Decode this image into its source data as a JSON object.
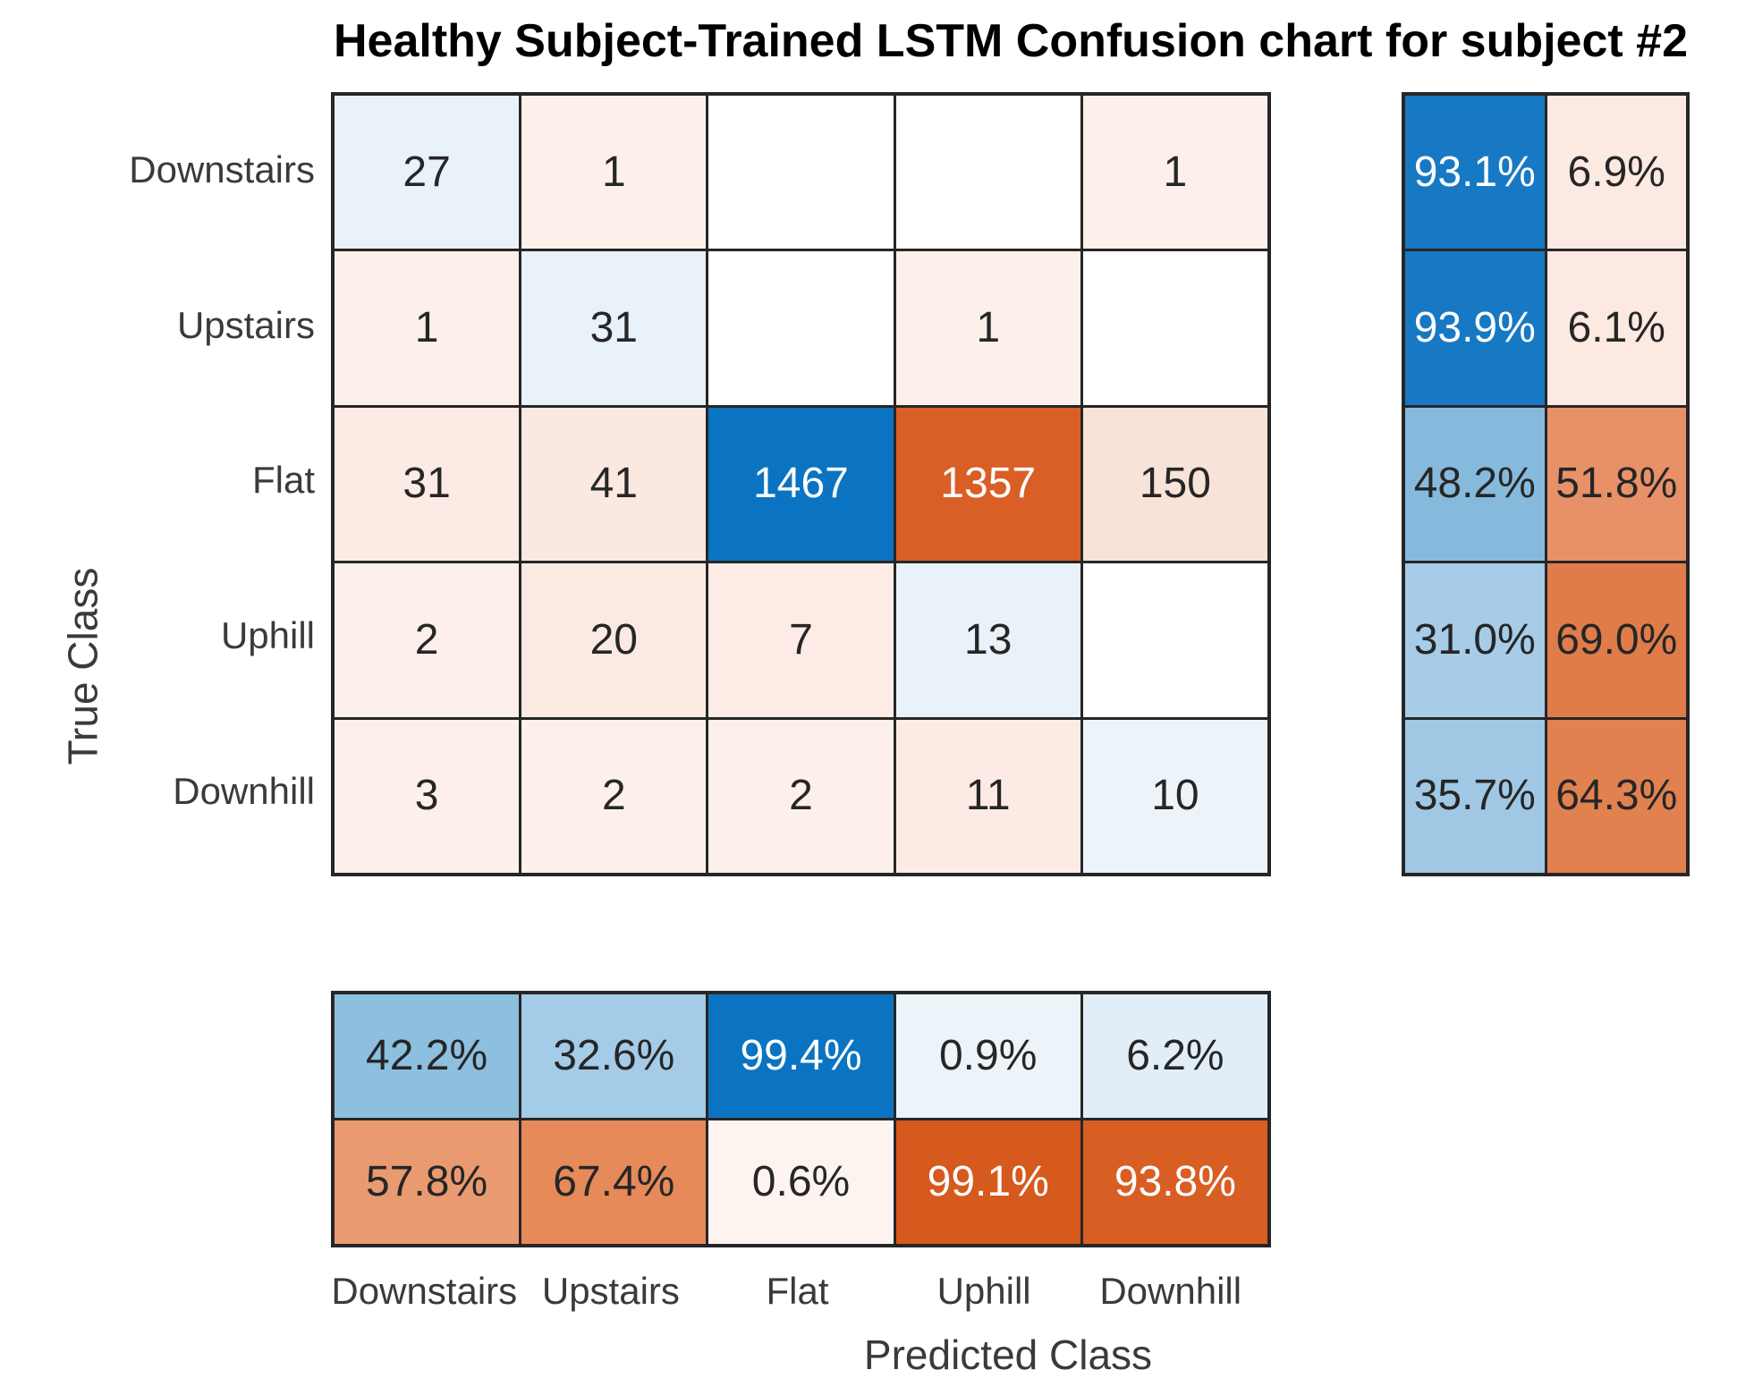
{
  "title": "Healthy Subject-Trained LSTM Confusion chart for subject #2",
  "x_axis": {
    "label": "Predicted Class",
    "ticks": [
      "Downstairs",
      "Upstairs",
      "Flat",
      "Uphill",
      "Downhill"
    ]
  },
  "y_axis": {
    "label": "True Class",
    "ticks": [
      "Downstairs",
      "Upstairs",
      "Flat",
      "Uphill",
      "Downhill"
    ]
  },
  "colors": {
    "diagonal_blue": "#0b74c2",
    "off_diagonal_orange": "#d95f26",
    "grid_line": "#262626",
    "text_dark": "#262626",
    "text_light": "#ffffff",
    "background": "#ffffff"
  },
  "chart_data": {
    "type": "heatmap",
    "title": "Healthy Subject-Trained LSTM Confusion chart for subject #2",
    "xlabel": "Predicted Class",
    "ylabel": "True Class",
    "classes": [
      "Downstairs",
      "Upstairs",
      "Flat",
      "Uphill",
      "Downhill"
    ],
    "matrix_rows_true_class": [
      "Downstairs",
      "Upstairs",
      "Flat",
      "Uphill",
      "Downhill"
    ],
    "matrix": [
      [
        27,
        1,
        0,
        0,
        1
      ],
      [
        1,
        31,
        0,
        1,
        0
      ],
      [
        31,
        41,
        1467,
        1357,
        150
      ],
      [
        2,
        20,
        7,
        13,
        0
      ],
      [
        3,
        2,
        2,
        11,
        10
      ]
    ],
    "zero_cells_shown_blank": true,
    "row_summary_true_positive_rate_pct": [
      93.1,
      93.9,
      48.2,
      31.0,
      35.7
    ],
    "row_summary_false_negative_rate_pct": [
      6.9,
      6.1,
      51.8,
      69.0,
      64.3
    ],
    "col_summary_positive_predictive_value_pct": [
      42.2,
      32.6,
      99.4,
      0.9,
      6.2
    ],
    "col_summary_false_discovery_rate_pct": [
      57.8,
      67.4,
      0.6,
      99.1,
      93.8
    ],
    "legend_position": "none",
    "grid": "dark cell borders"
  },
  "main_cells": [
    {
      "t": "27",
      "bg": "#e9f1f9",
      "fg": "#262626"
    },
    {
      "t": "1",
      "bg": "#fdf0eb",
      "fg": "#262626"
    },
    {
      "t": "",
      "bg": "#ffffff",
      "fg": "#262626"
    },
    {
      "t": "",
      "bg": "#ffffff",
      "fg": "#262626"
    },
    {
      "t": "1",
      "bg": "#fdf0eb",
      "fg": "#262626"
    },
    {
      "t": "1",
      "bg": "#fdf0eb",
      "fg": "#262626"
    },
    {
      "t": "31",
      "bg": "#e9f1f9",
      "fg": "#262626"
    },
    {
      "t": "",
      "bg": "#ffffff",
      "fg": "#262626"
    },
    {
      "t": "1",
      "bg": "#fdf0eb",
      "fg": "#262626"
    },
    {
      "t": "",
      "bg": "#ffffff",
      "fg": "#262626"
    },
    {
      "t": "31",
      "bg": "#fcebe4",
      "fg": "#262626"
    },
    {
      "t": "41",
      "bg": "#fbe9e1",
      "fg": "#262626"
    },
    {
      "t": "1467",
      "bg": "#0b74c2",
      "fg": "#ffffff"
    },
    {
      "t": "1357",
      "bg": "#d95f26",
      "fg": "#ffffff"
    },
    {
      "t": "150",
      "bg": "#f8e3d8",
      "fg": "#262626"
    },
    {
      "t": "2",
      "bg": "#fdf0ea",
      "fg": "#262626"
    },
    {
      "t": "20",
      "bg": "#fbeae2",
      "fg": "#262626"
    },
    {
      "t": "7",
      "bg": "#fdece6",
      "fg": "#262626"
    },
    {
      "t": "13",
      "bg": "#e9f2f8",
      "fg": "#262626"
    },
    {
      "t": "",
      "bg": "#ffffff",
      "fg": "#262626"
    },
    {
      "t": "3",
      "bg": "#fdf0ea",
      "fg": "#262626"
    },
    {
      "t": "2",
      "bg": "#fdf0eb",
      "fg": "#262626"
    },
    {
      "t": "2",
      "bg": "#fdf0eb",
      "fg": "#262626"
    },
    {
      "t": "11",
      "bg": "#fcebe5",
      "fg": "#262626"
    },
    {
      "t": "10",
      "bg": "#ecf4f9",
      "fg": "#262626"
    }
  ],
  "row_summary_cells": [
    {
      "t": "93.1%",
      "bg": "#1779c4",
      "fg": "#ffffff"
    },
    {
      "t": "6.9%",
      "bg": "#fbe9e2",
      "fg": "#262626"
    },
    {
      "t": "93.9%",
      "bg": "#1779c4",
      "fg": "#ffffff"
    },
    {
      "t": "6.1%",
      "bg": "#fbe9e2",
      "fg": "#262626"
    },
    {
      "t": "48.2%",
      "bg": "#85badd",
      "fg": "#262626"
    },
    {
      "t": "51.8%",
      "bg": "#e89168",
      "fg": "#262626"
    },
    {
      "t": "31.0%",
      "bg": "#a6cce8",
      "fg": "#262626"
    },
    {
      "t": "69.0%",
      "bg": "#e07c4a",
      "fg": "#262626"
    },
    {
      "t": "35.7%",
      "bg": "#a0c8e5",
      "fg": "#262626"
    },
    {
      "t": "64.3%",
      "bg": "#e28150",
      "fg": "#262626"
    }
  ],
  "col_summary_cells": [
    {
      "t": "42.2%",
      "bg": "#8dbfdf",
      "fg": "#262626"
    },
    {
      "t": "32.6%",
      "bg": "#a4cbe8",
      "fg": "#262626"
    },
    {
      "t": "99.4%",
      "bg": "#0b74c2",
      "fg": "#ffffff"
    },
    {
      "t": "0.9%",
      "bg": "#edf4f9",
      "fg": "#262626"
    },
    {
      "t": "6.2%",
      "bg": "#e2eef7",
      "fg": "#262626"
    },
    {
      "t": "57.8%",
      "bg": "#ea9a70",
      "fg": "#262626"
    },
    {
      "t": "67.4%",
      "bg": "#e68a59",
      "fg": "#262626"
    },
    {
      "t": "0.6%",
      "bg": "#fdf4f0",
      "fg": "#262626"
    },
    {
      "t": "99.1%",
      "bg": "#d6591d",
      "fg": "#ffffff"
    },
    {
      "t": "93.8%",
      "bg": "#d85e24",
      "fg": "#ffffff"
    }
  ]
}
